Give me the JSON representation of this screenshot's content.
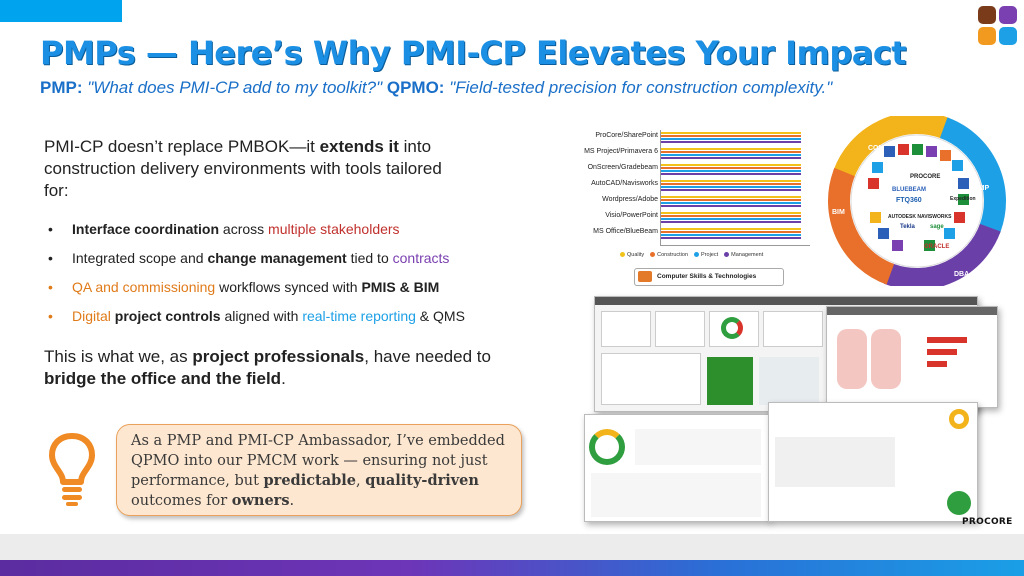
{
  "slide": {
    "title": "PMPs — Here’s Why PMI-CP Elevates Your Impact",
    "subtitle": {
      "pmp_label": "PMP:",
      "pmp_quote": "\"What does PMI-CP add to my toolkit?\"",
      "qpmo_label": "QPMO:",
      "qpmo_quote": "\"Field-tested precision for construction complexity.\""
    },
    "intro": {
      "part1": "PMI-CP doesn’t replace PMBOK—it ",
      "bold": "extends it",
      "part2": " into construction delivery environments with tools tailored for:"
    },
    "bullets": [
      {
        "marker": "•",
        "a": "Interface coordination",
        "b": " across ",
        "c": "multiple stakeholders"
      },
      {
        "marker": "•",
        "a": "Integrated scope and ",
        "b": "change management",
        "c": " tied to ",
        "d": "contracts"
      },
      {
        "marker": "•",
        "a": "QA and commissioning",
        "b": " workflows synced with ",
        "c": "PMIS & BIM"
      },
      {
        "marker": "•",
        "a": "Digital ",
        "b": "project controls",
        "c": " aligned with ",
        "d": "real-time reporting",
        "e": " & QMS"
      }
    ],
    "closing": {
      "part1": "This is what we, as ",
      "bold1": "project professionals",
      "part2": ", have needed to ",
      "bold2": "bridge the office and the field",
      "part3": "."
    },
    "callout": {
      "part1": "As a PMP and PMI-CP Ambassador, I’ve embedded QPMO into our PMCM work — ensuring not just performance, but ",
      "bold1": "predictable",
      "part2": ", ",
      "bold2": "quality-driven",
      "part3": " outcomes for ",
      "bold3": "owners",
      "part4": "."
    },
    "skills_chart": {
      "categories": [
        "ProCore/SharePoint",
        "MS Project/Primavera 6",
        "OnScreen/Gradebeam",
        "AutoCAD/Navisworks",
        "Wordpress/Adobe",
        "Visio/PowerPoint",
        "MS Office/BlueBeam"
      ],
      "legend": [
        "Quality",
        "Construction",
        "Project",
        "Management"
      ],
      "series_colors": [
        "#f2c21b",
        "#e8702a",
        "#1ea0e6",
        "#6b3fa8"
      ],
      "tag": "Computer Skills & Technologies"
    },
    "wheel_labels": [
      "CQM",
      "PMP",
      "BIM",
      "DBA"
    ],
    "wheel_text": [
      "PROCORE",
      "BLUEBEAM",
      "FTQ360",
      "AUTODESK NAVISWORKS",
      "Tekla",
      "ORACLE",
      "sage",
      "Expedition"
    ],
    "procore_label": "PROCORE",
    "colors": {
      "title": "#1a8fe3",
      "accent_blue": "#00a3ee",
      "red": "#c0302c",
      "purple": "#7a3fb0",
      "orange": "#e07b1a",
      "callout_bg": "#fde7d0"
    }
  }
}
